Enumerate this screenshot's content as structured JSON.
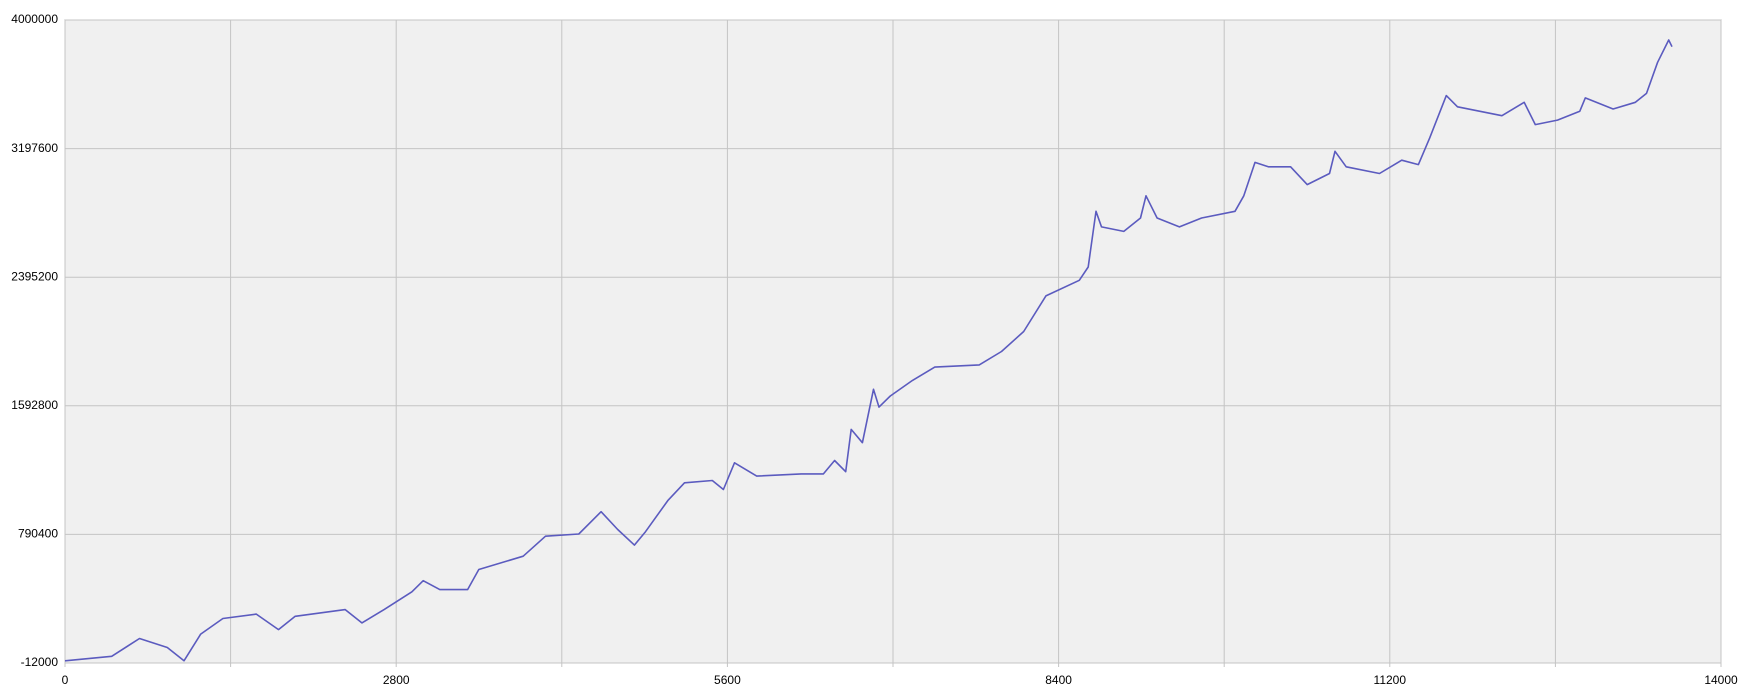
{
  "chart_data": {
    "type": "line",
    "x": [
      0,
      395,
      630,
      865,
      1006,
      1147,
      1335,
      1617,
      1805,
      1946,
      2369,
      2510,
      2698,
      2933,
      3028,
      3169,
      3404,
      3498,
      3874,
      4062,
      4344,
      4532,
      4673,
      4814,
      4908,
      5096,
      5237,
      5472,
      5566,
      5660,
      5848,
      6224,
      6412,
      6506,
      6600,
      6647,
      6741,
      6835,
      6882,
      6977,
      7165,
      7353,
      7729,
      7917,
      8105,
      8293,
      8575,
      8650,
      8716,
      8763,
      8951,
      9092,
      9139,
      9233,
      9421,
      9609,
      9891,
      9966,
      10060,
      10173,
      10361,
      10502,
      10690,
      10737,
      10831,
      11113,
      11301,
      11442,
      11537,
      11678,
      11772,
      12148,
      12336,
      12430,
      12618,
      12806,
      12853,
      13088,
      13276,
      13370,
      13464,
      13558,
      13586
    ],
    "series": [
      {
        "color": "#5b5bbf",
        "values": [
          2000,
          29600,
          140700,
          85000,
          2000,
          168500,
          265700,
          293400,
          196300,
          279500,
          321200,
          237900,
          321200,
          432200,
          501700,
          446100,
          446100,
          571100,
          654400,
          779300,
          793200,
          932000,
          821000,
          723800,
          807100,
          1001400,
          1112500,
          1126400,
          1070800,
          1237400,
          1154100,
          1168000,
          1168000,
          1251300,
          1181900,
          1445600,
          1362300,
          1695500,
          1584500,
          1653900,
          1751000,
          1834400,
          1848200,
          1931500,
          2056500,
          2278600,
          2375800,
          2459000,
          2806100,
          2708900,
          2681200,
          2764500,
          2903300,
          2764500,
          2708900,
          2764500,
          2806100,
          2903300,
          3111600,
          3083800,
          3083800,
          2972700,
          3042100,
          3180900,
          3083800,
          3042100,
          3125400,
          3097600,
          3264200,
          3528000,
          3458600,
          3403100,
          3486300,
          3347500,
          3375300,
          3430800,
          3514100,
          3444700,
          3486300,
          3541900,
          3736300,
          3875100,
          3833500
        ]
      }
    ],
    "xlim": [
      0,
      14000
    ],
    "xticks": [
      0,
      2800,
      5600,
      8400,
      11200,
      14000
    ],
    "xgrid_minor": [
      1400,
      4200,
      7000,
      9800,
      12600
    ],
    "ylim": [
      -12000,
      4000000
    ],
    "yticks": [
      -12000,
      790400,
      1592800,
      2395200,
      3197600,
      4000000
    ],
    "grid": true
  }
}
